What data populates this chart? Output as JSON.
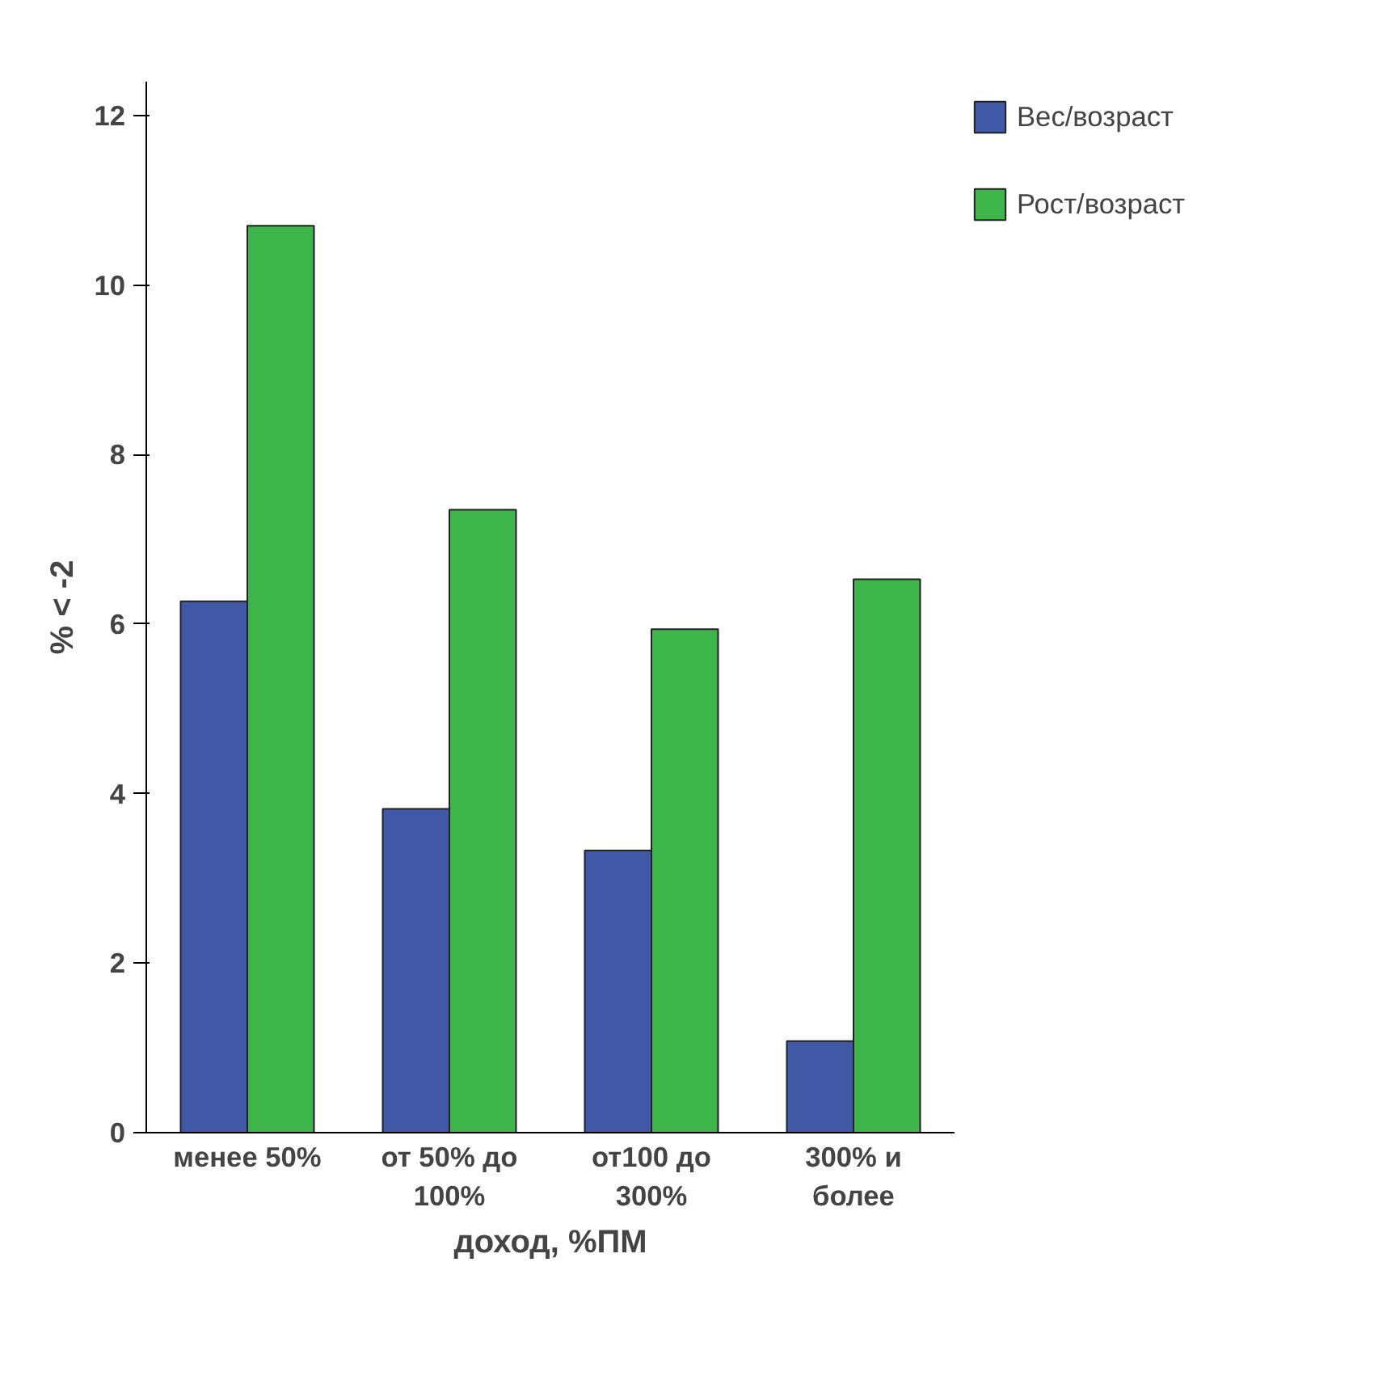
{
  "chart_data": {
    "type": "bar",
    "xlabel": "доход, %ПМ",
    "ylabel": "% < -2",
    "categories": [
      "менее 50%",
      "от 50% до 100%",
      "от100 до 300%",
      "300% и более"
    ],
    "series": [
      {
        "name": "Вес/возраст",
        "color": "#4158a6",
        "values": [
          6.27,
          3.82,
          3.33,
          1.08
        ]
      },
      {
        "name": "Рост/возраст",
        "color": "#3db54a",
        "values": [
          10.7,
          7.35,
          5.94,
          6.53
        ]
      }
    ],
    "ylim": [
      0,
      12.4
    ],
    "yticks": [
      0,
      2,
      4,
      6,
      8,
      10,
      12
    ],
    "grid": false,
    "legend": "top right"
  }
}
